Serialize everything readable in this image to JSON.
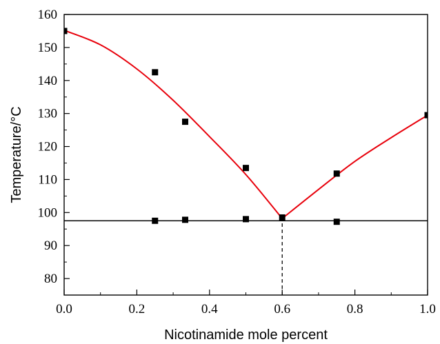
{
  "chart_data": {
    "type": "scatter",
    "title": "",
    "xlabel": "Nicotinamide mole percent",
    "ylabel": "Temperature/°C",
    "xlim": [
      0.0,
      1.0
    ],
    "ylim": [
      75,
      160
    ],
    "x_ticks": [
      0.0,
      0.2,
      0.4,
      0.6,
      0.8,
      1.0
    ],
    "x_tick_labels": [
      "0.0",
      "0.2",
      "0.4",
      "0.6",
      "0.8",
      "1.0"
    ],
    "y_ticks": [
      80,
      90,
      100,
      110,
      120,
      130,
      140,
      150,
      160
    ],
    "y_tick_labels": [
      "80",
      "90",
      "100",
      "110",
      "120",
      "130",
      "140",
      "150",
      "160"
    ],
    "grid": false,
    "legend": "none",
    "series": [
      {
        "kind": "points",
        "marker": "square",
        "color": "#000000",
        "x": [
          0.0,
          0.25,
          0.333,
          0.5,
          0.6,
          0.75,
          1.0,
          0.25,
          0.333,
          0.5,
          0.75
        ],
        "y": [
          155.0,
          142.5,
          127.5,
          113.5,
          98.5,
          111.8,
          129.5,
          97.5,
          97.8,
          98.0,
          97.2
        ]
      },
      {
        "kind": "curve",
        "color": "#e8000b",
        "x": [
          0.0,
          0.1,
          0.2,
          0.3,
          0.4,
          0.5,
          0.6,
          0.7,
          0.8,
          0.9,
          1.0
        ],
        "y": [
          155.2,
          150.8,
          143.5,
          134.0,
          123.0,
          111.5,
          98.2,
          107.0,
          115.5,
          122.7,
          129.5
        ]
      },
      {
        "kind": "hline",
        "color": "#000000",
        "y": 97.5
      },
      {
        "kind": "vline-dashed",
        "color": "#000000",
        "x": 0.6,
        "y_top": 98.2
      }
    ]
  }
}
